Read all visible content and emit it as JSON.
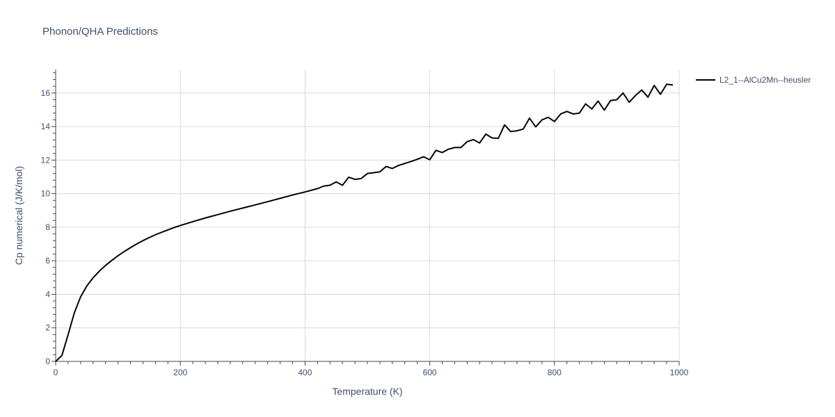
{
  "chart_data": {
    "type": "line",
    "title": "Phonon/QHA Predictions",
    "xlabel": "Temperature (K)",
    "ylabel": "Cp numerical (J/K/mol)",
    "xlim": [
      0,
      1000
    ],
    "ylim": [
      0,
      17.4
    ],
    "x_ticks": [
      0,
      200,
      400,
      600,
      800,
      1000
    ],
    "y_ticks": [
      0,
      2,
      4,
      6,
      8,
      10,
      12,
      14,
      16
    ],
    "grid": true,
    "legend_position": "top-right",
    "colors": {
      "line": "#000000",
      "grid": "#d9d9d9",
      "text": "#3f4f6b"
    },
    "series": [
      {
        "name": "L2_1--AlCu2Mn--heusler",
        "x": [
          0,
          10,
          20,
          30,
          40,
          50,
          60,
          70,
          80,
          90,
          100,
          110,
          120,
          130,
          140,
          150,
          160,
          170,
          180,
          190,
          200,
          220,
          240,
          260,
          280,
          300,
          320,
          340,
          360,
          380,
          400,
          420,
          430,
          440,
          450,
          460,
          470,
          480,
          490,
          500,
          510,
          520,
          530,
          540,
          550,
          560,
          570,
          580,
          590,
          600,
          610,
          620,
          630,
          640,
          650,
          660,
          670,
          680,
          690,
          700,
          710,
          720,
          730,
          740,
          750,
          760,
          770,
          780,
          790,
          800,
          810,
          820,
          830,
          840,
          850,
          860,
          870,
          880,
          890,
          900,
          910,
          920,
          930,
          940,
          950,
          960,
          970,
          980,
          990
        ],
        "y": [
          0.0,
          0.35,
          1.6,
          2.9,
          3.85,
          4.5,
          4.98,
          5.38,
          5.72,
          6.02,
          6.3,
          6.55,
          6.78,
          7.0,
          7.2,
          7.38,
          7.55,
          7.7,
          7.84,
          7.98,
          8.1,
          8.33,
          8.55,
          8.75,
          8.95,
          9.14,
          9.33,
          9.52,
          9.72,
          9.92,
          10.1,
          10.3,
          10.45,
          10.5,
          10.7,
          10.5,
          10.98,
          10.85,
          10.9,
          11.2,
          11.25,
          11.3,
          11.62,
          11.5,
          11.68,
          11.8,
          11.92,
          12.05,
          12.2,
          12.02,
          12.58,
          12.45,
          12.65,
          12.75,
          12.75,
          13.1,
          13.22,
          13.02,
          13.55,
          13.32,
          13.3,
          14.1,
          13.7,
          13.75,
          13.85,
          14.5,
          13.98,
          14.4,
          14.55,
          14.3,
          14.75,
          14.9,
          14.75,
          14.8,
          15.35,
          15.05,
          15.52,
          14.98,
          15.55,
          15.6,
          16.0,
          15.45,
          15.85,
          16.18,
          15.75,
          16.45,
          15.92,
          16.52,
          16.48
        ]
      }
    ]
  }
}
